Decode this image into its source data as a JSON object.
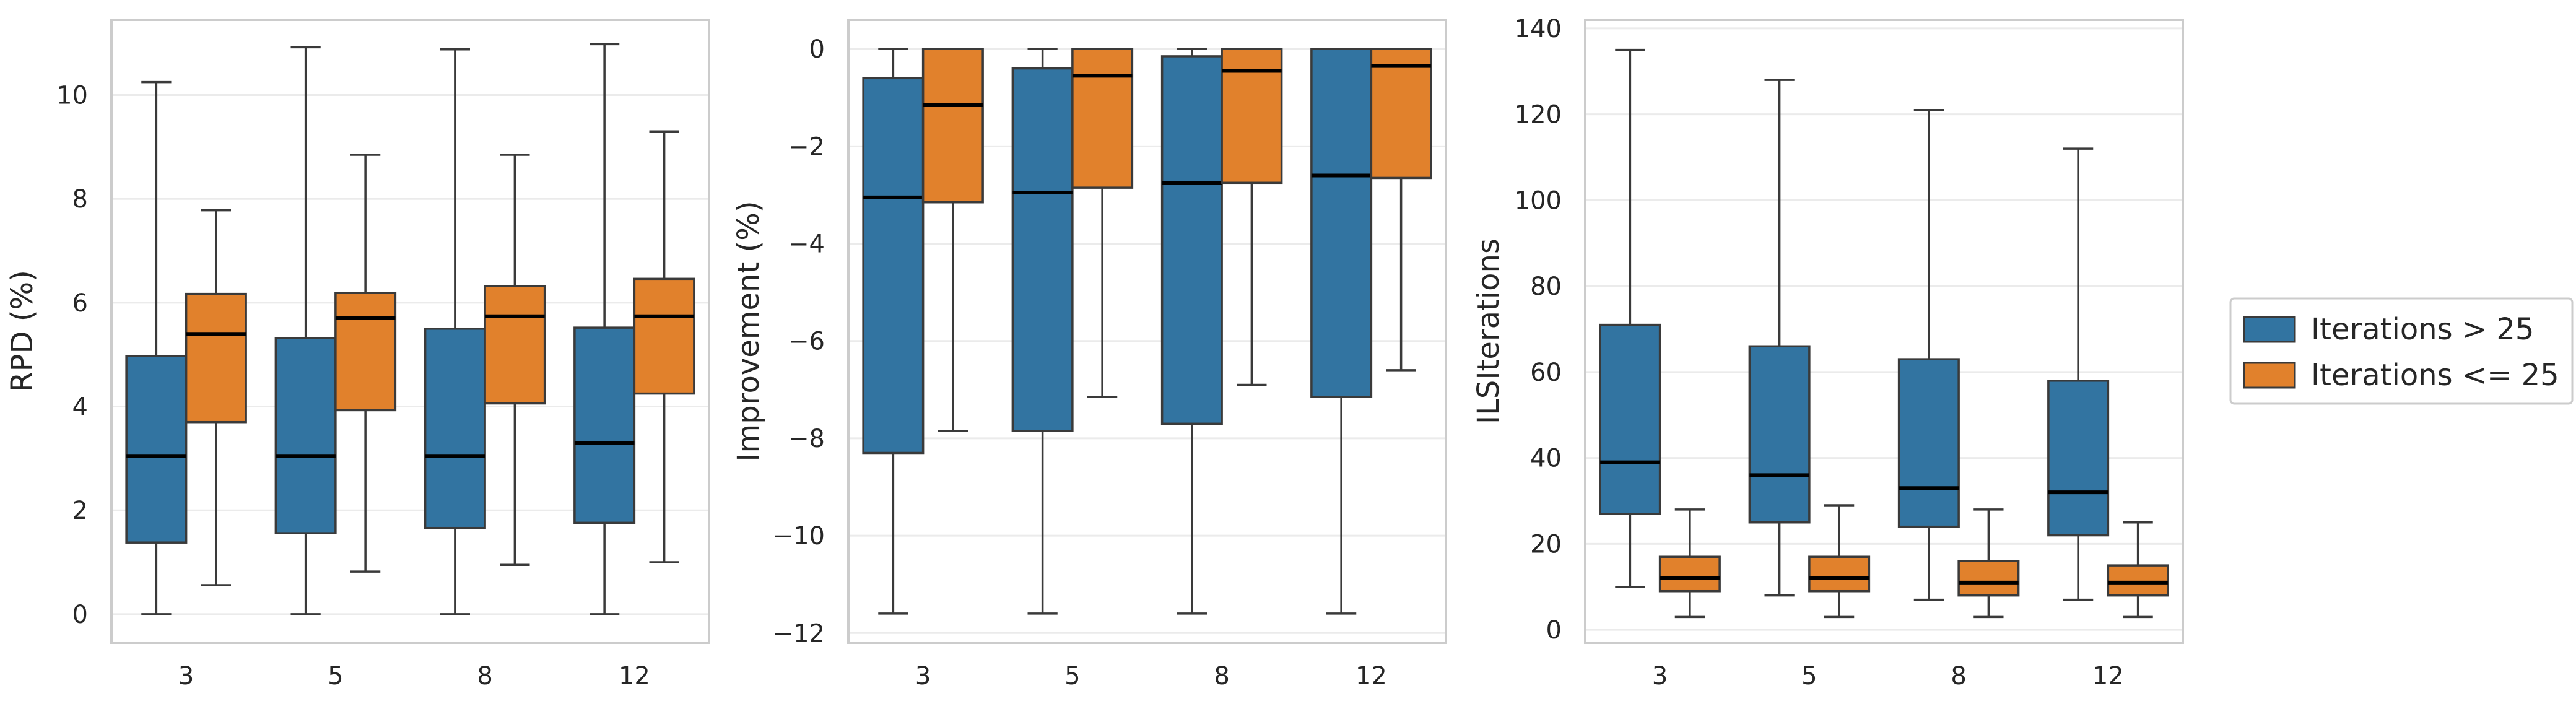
{
  "chart_data": [
    {
      "type": "box",
      "ylabel": "RPD (%)",
      "categories": [
        "3",
        "5",
        "8",
        "12"
      ],
      "ylim": [
        -0.55,
        11.45
      ],
      "yticks": [
        0,
        2,
        4,
        6,
        8,
        10
      ],
      "grid": true,
      "series": [
        {
          "name": "Iterations > 25",
          "color": "#3274a1",
          "boxes": [
            {
              "whislo": 0.0,
              "q1": 1.38,
              "med": 3.05,
              "q3": 4.97,
              "whishi": 10.25
            },
            {
              "whislo": 0.0,
              "q1": 1.56,
              "med": 3.05,
              "q3": 5.32,
              "whishi": 10.92
            },
            {
              "whislo": 0.0,
              "q1": 1.66,
              "med": 3.05,
              "q3": 5.5,
              "whishi": 10.88
            },
            {
              "whislo": 0.0,
              "q1": 1.76,
              "med": 3.3,
              "q3": 5.52,
              "whishi": 10.98
            }
          ]
        },
        {
          "name": "Iterations <= 25",
          "color": "#e1812c",
          "boxes": [
            {
              "whislo": 0.56,
              "q1": 3.7,
              "med": 5.4,
              "q3": 6.17,
              "whishi": 7.78
            },
            {
              "whislo": 0.82,
              "q1": 3.93,
              "med": 5.7,
              "q3": 6.19,
              "whishi": 8.85
            },
            {
              "whislo": 0.95,
              "q1": 4.06,
              "med": 5.74,
              "q3": 6.32,
              "whishi": 8.85
            },
            {
              "whislo": 1.0,
              "q1": 4.25,
              "med": 5.74,
              "q3": 6.46,
              "whishi": 9.3
            }
          ]
        }
      ]
    },
    {
      "type": "box",
      "ylabel": "Improvement (%)",
      "categories": [
        "3",
        "5",
        "8",
        "12"
      ],
      "ylim": [
        -12.2,
        0.6
      ],
      "yticks": [
        -12,
        -10,
        -8,
        -6,
        -4,
        -2,
        0
      ],
      "grid": true,
      "series": [
        {
          "name": "Iterations > 25",
          "color": "#3274a1",
          "boxes": [
            {
              "whislo": -11.6,
              "q1": -8.3,
              "med": -3.05,
              "q3": -0.6,
              "whishi": 0.0
            },
            {
              "whislo": -11.6,
              "q1": -7.85,
              "med": -2.95,
              "q3": -0.4,
              "whishi": 0.0
            },
            {
              "whislo": -11.6,
              "q1": -7.7,
              "med": -2.75,
              "q3": -0.15,
              "whishi": 0.0
            },
            {
              "whislo": -11.6,
              "q1": -7.15,
              "med": -2.6,
              "q3": 0.0,
              "whishi": 0.0
            }
          ]
        },
        {
          "name": "Iterations <= 25",
          "color": "#e1812c",
          "boxes": [
            {
              "whislo": -7.85,
              "q1": -3.15,
              "med": -1.15,
              "q3": 0.0,
              "whishi": 0.0
            },
            {
              "whislo": -7.15,
              "q1": -2.85,
              "med": -0.55,
              "q3": 0.0,
              "whishi": 0.0
            },
            {
              "whislo": -6.9,
              "q1": -2.75,
              "med": -0.45,
              "q3": 0.0,
              "whishi": 0.0
            },
            {
              "whislo": -6.6,
              "q1": -2.65,
              "med": -0.35,
              "q3": 0.0,
              "whishi": 0.0
            }
          ]
        }
      ]
    },
    {
      "type": "box",
      "ylabel": "ILSIterations",
      "categories": [
        "3",
        "5",
        "8",
        "12"
      ],
      "ylim": [
        -3,
        142
      ],
      "yticks": [
        0,
        20,
        40,
        60,
        80,
        100,
        120,
        140
      ],
      "grid": true,
      "series": [
        {
          "name": "Iterations > 25",
          "color": "#3274a1",
          "boxes": [
            {
              "whislo": 10,
              "q1": 27,
              "med": 39,
              "q3": 71,
              "whishi": 135
            },
            {
              "whislo": 8,
              "q1": 25,
              "med": 36,
              "q3": 66,
              "whishi": 128
            },
            {
              "whislo": 7,
              "q1": 24,
              "med": 33,
              "q3": 63,
              "whishi": 121
            },
            {
              "whislo": 7,
              "q1": 22,
              "med": 32,
              "q3": 58,
              "whishi": 112
            }
          ]
        },
        {
          "name": "Iterations <= 25",
          "color": "#e1812c",
          "boxes": [
            {
              "whislo": 3,
              "q1": 9,
              "med": 12,
              "q3": 17,
              "whishi": 28
            },
            {
              "whislo": 3,
              "q1": 9,
              "med": 12,
              "q3": 17,
              "whishi": 29
            },
            {
              "whislo": 3,
              "q1": 8,
              "med": 11,
              "q3": 16,
              "whishi": 28
            },
            {
              "whislo": 3,
              "q1": 8,
              "med": 11,
              "q3": 15,
              "whishi": 25
            }
          ]
        }
      ]
    }
  ],
  "legend": {
    "placement": "right",
    "items": [
      {
        "label": "Iterations > 25",
        "color": "#3274a1"
      },
      {
        "label": "Iterations <= 25",
        "color": "#e1812c"
      }
    ]
  }
}
